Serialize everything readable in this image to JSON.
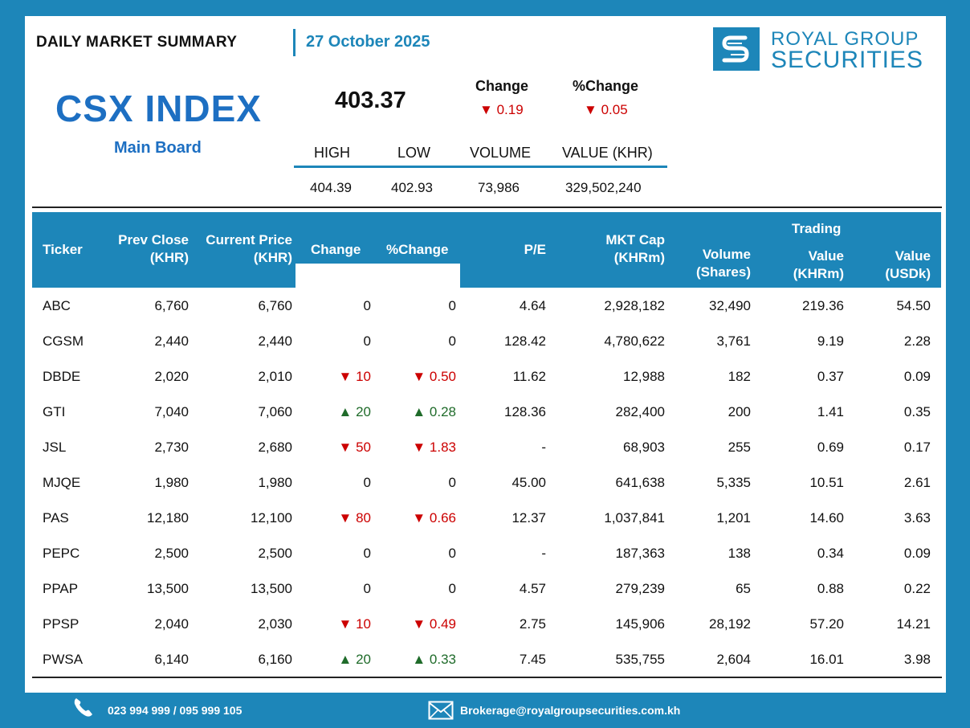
{
  "header": {
    "title": "DAILY MARKET SUMMARY",
    "date": "27 October 2025"
  },
  "logo": {
    "line1": "ROYAL GROUP",
    "line2": "SECURITIES"
  },
  "index": {
    "name": "CSX INDEX",
    "board": "Main Board",
    "value": "403.37",
    "change_label": "Change",
    "change_value": "0.19",
    "pct_change_label": "%Change",
    "pct_change_value": "0.05",
    "stats": {
      "labels": [
        "HIGH",
        "LOW",
        "VOLUME",
        "VALUE (KHR)"
      ],
      "values": [
        "404.39",
        "402.93",
        "73,986",
        "329,502,240"
      ]
    }
  },
  "table": {
    "headers": {
      "ticker": "Ticker",
      "prev_close": [
        "Prev Close",
        "(KHR)"
      ],
      "current_price": [
        "Current Price",
        "(KHR)"
      ],
      "change": "Change",
      "pct_change": "%Change",
      "pe": "P/E",
      "mkt_cap": [
        "MKT Cap",
        "(KHRm)"
      ],
      "volume": [
        "Volume",
        "(Shares)"
      ],
      "trading_group": "Trading",
      "value_khr": [
        "Value",
        "(KHRm)"
      ],
      "value_usd": [
        "Value",
        "(USDk)"
      ]
    },
    "rows": [
      {
        "ticker": "ABC",
        "prev": "6,760",
        "cur": "6,760",
        "chg": "0",
        "pct": "0",
        "dir": "flat",
        "pe": "4.64",
        "cap": "2,928,182",
        "vol": "32,490",
        "vkhr": "219.36",
        "vusd": "54.50"
      },
      {
        "ticker": "CGSM",
        "prev": "2,440",
        "cur": "2,440",
        "chg": "0",
        "pct": "0",
        "dir": "flat",
        "pe": "128.42",
        "cap": "4,780,622",
        "vol": "3,761",
        "vkhr": "9.19",
        "vusd": "2.28"
      },
      {
        "ticker": "DBDE",
        "prev": "2,020",
        "cur": "2,010",
        "chg": "10",
        "pct": "0.50",
        "dir": "down",
        "pe": "11.62",
        "cap": "12,988",
        "vol": "182",
        "vkhr": "0.37",
        "vusd": "0.09"
      },
      {
        "ticker": "GTI",
        "prev": "7,040",
        "cur": "7,060",
        "chg": "20",
        "pct": "0.28",
        "dir": "up",
        "pe": "128.36",
        "cap": "282,400",
        "vol": "200",
        "vkhr": "1.41",
        "vusd": "0.35"
      },
      {
        "ticker": "JSL",
        "prev": "2,730",
        "cur": "2,680",
        "chg": "50",
        "pct": "1.83",
        "dir": "down",
        "pe": "-",
        "cap": "68,903",
        "vol": "255",
        "vkhr": "0.69",
        "vusd": "0.17"
      },
      {
        "ticker": "MJQE",
        "prev": "1,980",
        "cur": "1,980",
        "chg": "0",
        "pct": "0",
        "dir": "flat",
        "pe": "45.00",
        "cap": "641,638",
        "vol": "5,335",
        "vkhr": "10.51",
        "vusd": "2.61"
      },
      {
        "ticker": "PAS",
        "prev": "12,180",
        "cur": "12,100",
        "chg": "80",
        "pct": "0.66",
        "dir": "down",
        "pe": "12.37",
        "cap": "1,037,841",
        "vol": "1,201",
        "vkhr": "14.60",
        "vusd": "3.63"
      },
      {
        "ticker": "PEPC",
        "prev": "2,500",
        "cur": "2,500",
        "chg": "0",
        "pct": "0",
        "dir": "flat",
        "pe": "-",
        "cap": "187,363",
        "vol": "138",
        "vkhr": "0.34",
        "vusd": "0.09"
      },
      {
        "ticker": "PPAP",
        "prev": "13,500",
        "cur": "13,500",
        "chg": "0",
        "pct": "0",
        "dir": "flat",
        "pe": "4.57",
        "cap": "279,239",
        "vol": "65",
        "vkhr": "0.88",
        "vusd": "0.22"
      },
      {
        "ticker": "PPSP",
        "prev": "2,040",
        "cur": "2,030",
        "chg": "10",
        "pct": "0.49",
        "dir": "down",
        "pe": "2.75",
        "cap": "145,906",
        "vol": "28,192",
        "vkhr": "57.20",
        "vusd": "14.21"
      },
      {
        "ticker": "PWSA",
        "prev": "6,140",
        "cur": "6,160",
        "chg": "20",
        "pct": "0.33",
        "dir": "up",
        "pe": "7.45",
        "cap": "535,755",
        "vol": "2,604",
        "vkhr": "16.01",
        "vusd": "3.98"
      }
    ]
  },
  "footer": {
    "phone": "023 994 999 / 095 999 105",
    "email": "Brokerage@royalgroupsecurities.com.kh"
  },
  "colors": {
    "brand": "#1d86b9",
    "title_blue": "#1d6fc2",
    "down": "#cc0000",
    "up": "#1f6b2a"
  }
}
